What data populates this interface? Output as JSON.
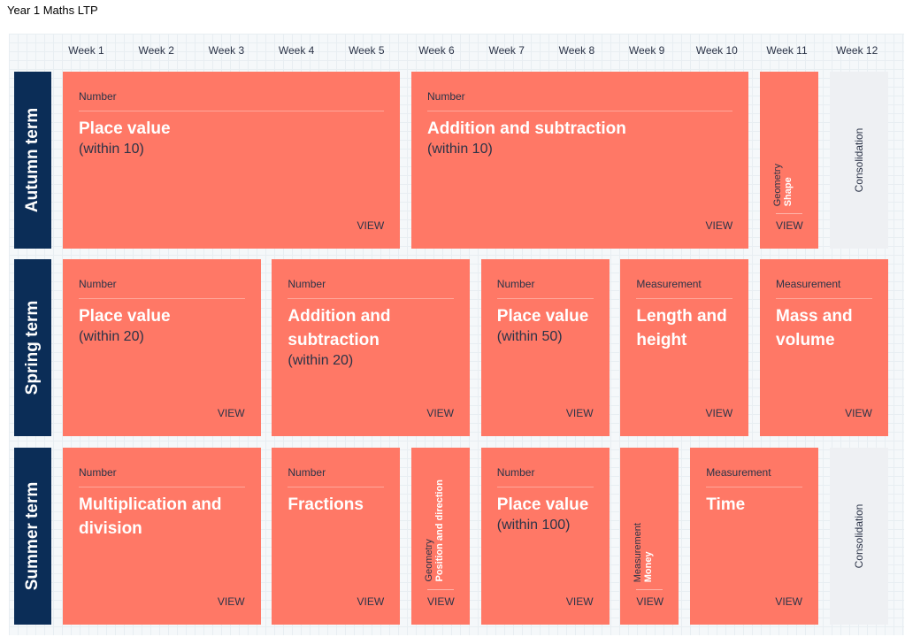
{
  "title": "Year 1 Maths LTP",
  "weeks": [
    "Week 1",
    "Week 2",
    "Week 3",
    "Week 4",
    "Week 5",
    "Week 6",
    "Week 7",
    "Week 8",
    "Week 9",
    "Week 10",
    "Week 11",
    "Week 12"
  ],
  "terms": [
    {
      "name": "Autumn term",
      "blocks": [
        {
          "category": "Number",
          "title": "Place value",
          "subtitle": "(within 10)",
          "link": "VIEW"
        },
        {
          "category": "Number",
          "title": "Addition and subtraction",
          "subtitle": "(within 10)",
          "link": "VIEW"
        },
        {
          "category": "Geometry",
          "title": "Shape",
          "link": "VIEW"
        },
        {
          "title": "Consolidation"
        }
      ]
    },
    {
      "name": "Spring term",
      "blocks": [
        {
          "category": "Number",
          "title": "Place value",
          "subtitle": "(within 20)",
          "link": "VIEW"
        },
        {
          "category": "Number",
          "title": "Addition and subtraction",
          "subtitle": "(within 20)",
          "link": "VIEW"
        },
        {
          "category": "Number",
          "title": "Place value",
          "subtitle": "(within 50)",
          "link": "VIEW"
        },
        {
          "category": "Measurement",
          "title": "Length and height",
          "link": "VIEW"
        },
        {
          "category": "Measurement",
          "title": "Mass and volume",
          "link": "VIEW"
        }
      ]
    },
    {
      "name": "Summer term",
      "blocks": [
        {
          "category": "Number",
          "title": "Multiplication and division",
          "link": "VIEW"
        },
        {
          "category": "Number",
          "title": "Fractions",
          "link": "VIEW"
        },
        {
          "category": "Geometry",
          "title": "Position and direction",
          "link": "VIEW"
        },
        {
          "category": "Number",
          "title": "Place value",
          "subtitle": "(within 100)",
          "link": "VIEW"
        },
        {
          "category": "Measurement",
          "title": "Money",
          "link": "VIEW"
        },
        {
          "category": "Measurement",
          "title": "Time",
          "link": "VIEW"
        },
        {
          "title": "Consolidation"
        }
      ]
    }
  ]
}
